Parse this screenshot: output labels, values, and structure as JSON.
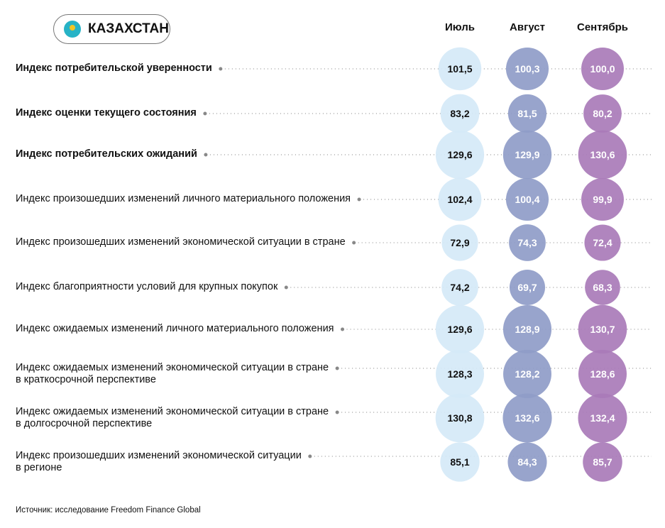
{
  "country": "КАЗАХСТАН",
  "source": "Источник: исследование Freedom Finance Global",
  "chart_data": {
    "type": "bubble-table",
    "categories": [
      "Июль",
      "Август",
      "Сентябрь"
    ],
    "colors": [
      "#d5e9f7",
      "#8f9cc8",
      "#a97bb9"
    ],
    "rows": [
      {
        "label": "Индекс потребительской уверенности",
        "bold": true,
        "values": [
          101.5,
          100.3,
          100.0
        ],
        "texts": [
          "101,5",
          "100,3",
          "100,0"
        ]
      },
      {
        "label": "Индекс оценки текущего состояния",
        "bold": true,
        "values": [
          83.2,
          81.5,
          80.2
        ],
        "texts": [
          "83,2",
          "81,5",
          "80,2"
        ]
      },
      {
        "label": "Индекс потребительских ожиданий",
        "bold": true,
        "values": [
          129.6,
          129.9,
          130.6
        ],
        "texts": [
          "129,6",
          "129,9",
          "130,6"
        ]
      },
      {
        "label": "Индекс произошедших изменений личного материального положения",
        "bold": false,
        "values": [
          102.4,
          100.4,
          99.9
        ],
        "texts": [
          "102,4",
          "100,4",
          "99,9"
        ]
      },
      {
        "label": "Индекс произошедших изменений экономической ситуации в стране",
        "bold": false,
        "values": [
          72.9,
          74.3,
          72.4
        ],
        "texts": [
          "72,9",
          "74,3",
          "72,4"
        ]
      },
      {
        "label": "Индекс благоприятности условий для крупных покупок",
        "bold": false,
        "values": [
          74.2,
          69.7,
          68.3
        ],
        "texts": [
          "74,2",
          "69,7",
          "68,3"
        ]
      },
      {
        "label": "Индекс ожидаемых изменений личного материального положения",
        "bold": false,
        "values": [
          129.6,
          128.9,
          130.7
        ],
        "texts": [
          "129,6",
          "128,9",
          "130,7"
        ]
      },
      {
        "label": "Индекс ожидаемых изменений экономической ситуации в стране",
        "label2": "в краткосрочной перспективе",
        "bold": false,
        "values": [
          128.3,
          128.2,
          128.6
        ],
        "texts": [
          "128,3",
          "128,2",
          "128,6"
        ]
      },
      {
        "label": "Индекс ожидаемых изменений экономической ситуации в стране",
        "label2": "в долгосрочной перспективе",
        "bold": false,
        "values": [
          130.8,
          132.6,
          132.4
        ],
        "texts": [
          "130,8",
          "132,6",
          "132,4"
        ]
      },
      {
        "label": "Индекс произошедших изменений экономической ситуации",
        "label2": "в регионе",
        "bold": false,
        "values": [
          85.1,
          84.3,
          85.7
        ],
        "texts": [
          "85,1",
          "84,3",
          "85,7"
        ]
      }
    ]
  }
}
